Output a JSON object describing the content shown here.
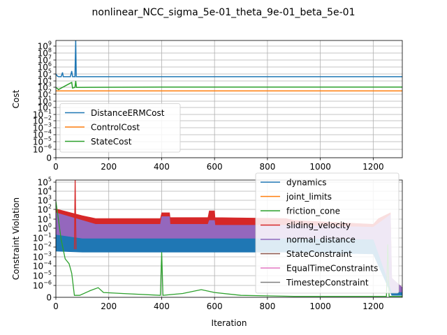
{
  "figure": {
    "suptitle": "nonlinear_NCC_sigma_5e-01_theta_9e-01_beta_5e-01"
  },
  "chart_data": [
    {
      "type": "line",
      "ylabel": "Cost",
      "xlabel": "",
      "yscale": "log",
      "xlim": [
        0,
        1310
      ],
      "ylim_log10": [
        -7,
        9.5
      ],
      "grid": true,
      "legend_position": "lower-left",
      "x_ticks": [
        0,
        200,
        400,
        600,
        800,
        1000,
        1200
      ],
      "y_ticks": [
        {
          "label": "0",
          "exp": null
        },
        {
          "label": "10",
          "exp": "−6"
        },
        {
          "label": "10",
          "exp": "−5"
        },
        {
          "label": "10",
          "exp": "−4"
        },
        {
          "label": "10",
          "exp": "−3"
        },
        {
          "label": "10",
          "exp": "−2"
        },
        {
          "label": "10",
          "exp": "−1"
        },
        {
          "label": "10",
          "exp": "0"
        },
        {
          "label": "10",
          "exp": "1"
        },
        {
          "label": "10",
          "exp": "2"
        },
        {
          "label": "10",
          "exp": "3"
        },
        {
          "label": "10",
          "exp": "4"
        },
        {
          "label": "10",
          "exp": "5"
        },
        {
          "label": "10",
          "exp": "6"
        },
        {
          "label": "10",
          "exp": "7"
        },
        {
          "label": "10",
          "exp": "8"
        },
        {
          "label": "10",
          "exp": "9"
        }
      ],
      "series": [
        {
          "name": "DistanceERMCost",
          "color": "#1f77b4",
          "points_log10": [
            [
              0,
              4.8
            ],
            [
              5,
              4.5
            ],
            [
              10,
              4.4
            ],
            [
              20,
              4.4
            ],
            [
              25,
              5.0
            ],
            [
              28,
              4.4
            ],
            [
              55,
              4.4
            ],
            [
              60,
              5.2
            ],
            [
              63,
              4.4
            ],
            [
              72,
              4.4
            ],
            [
              75,
              9.5
            ],
            [
              77,
              4.4
            ],
            [
              400,
              4.4
            ],
            [
              1310,
              4.4
            ]
          ]
        },
        {
          "name": "ControlCost",
          "color": "#ff7f0e",
          "points_log10": [
            [
              0,
              2.4
            ],
            [
              1310,
              2.4
            ]
          ]
        },
        {
          "name": "StateCost",
          "color": "#2ca02c",
          "points_log10": [
            [
              0,
              2.9
            ],
            [
              10,
              2.6
            ],
            [
              20,
              2.8
            ],
            [
              60,
              3.6
            ],
            [
              63,
              2.8
            ],
            [
              72,
              2.9
            ],
            [
              75,
              3.8
            ],
            [
              78,
              2.9
            ],
            [
              400,
              2.95
            ],
            [
              900,
              2.95
            ],
            [
              1310,
              2.95
            ]
          ]
        }
      ]
    },
    {
      "type": "line",
      "ylabel": "Constraint Violation",
      "xlabel": "Iteration",
      "yscale": "log",
      "xlim": [
        0,
        1310
      ],
      "ylim_log10": [
        -7,
        5.2
      ],
      "grid": true,
      "legend_position": "upper-right",
      "x_ticks": [
        0,
        200,
        400,
        600,
        800,
        1000,
        1200
      ],
      "y_ticks": [
        {
          "label": "0",
          "exp": null
        },
        {
          "label": "10",
          "exp": "−6"
        },
        {
          "label": "10",
          "exp": "−5"
        },
        {
          "label": "10",
          "exp": "−4"
        },
        {
          "label": "10",
          "exp": "−3"
        },
        {
          "label": "10",
          "exp": "−2"
        },
        {
          "label": "10",
          "exp": "−1"
        },
        {
          "label": "10",
          "exp": "0"
        },
        {
          "label": "10",
          "exp": "1"
        },
        {
          "label": "10",
          "exp": "2"
        },
        {
          "label": "10",
          "exp": "3"
        },
        {
          "label": "10",
          "exp": "4"
        },
        {
          "label": "10",
          "exp": "5"
        }
      ],
      "series": [
        {
          "name": "dynamics",
          "color": "#1f77b4"
        },
        {
          "name": "joint_limits",
          "color": "#ff7f0e"
        },
        {
          "name": "friction_cone",
          "color": "#2ca02c"
        },
        {
          "name": "sliding_velocity",
          "color": "#d62728"
        },
        {
          "name": "normal_distance",
          "color": "#9467bd"
        },
        {
          "name": "StateConstraint",
          "color": "#8c564b"
        },
        {
          "name": "EqualTimeConstraints",
          "color": "#e377c2"
        },
        {
          "name": "TimestepConstraint",
          "color": "#7f7f7f"
        }
      ],
      "bands_log10": [
        {
          "series": "sliding_velocity",
          "color": "#d62728",
          "upper": [
            [
              0,
              2.2
            ],
            [
              100,
              1.5
            ],
            [
              150,
              1.2
            ],
            [
              395,
              1.2
            ],
            [
              400,
              1.8
            ],
            [
              430,
              1.8
            ],
            [
              432,
              1.3
            ],
            [
              575,
              1.3
            ],
            [
              580,
              2.0
            ],
            [
              600,
              2.0
            ],
            [
              602,
              1.3
            ],
            [
              870,
              1.2
            ],
            [
              900,
              1.0
            ],
            [
              1200,
              0.6
            ],
            [
              1220,
              1.2
            ],
            [
              1265,
              1.8
            ],
            [
              1270,
              -5
            ],
            [
              1310,
              -6
            ]
          ],
          "lower": [
            [
              0,
              0.5
            ],
            [
              100,
              0.3
            ],
            [
              400,
              0.3
            ],
            [
              900,
              0.3
            ],
            [
              1200,
              0.0
            ],
            [
              1270,
              -6.5
            ],
            [
              1310,
              -6.5
            ]
          ]
        },
        {
          "series": "normal_distance",
          "color": "#9467bd",
          "upper": [
            [
              0,
              1.8
            ],
            [
              100,
              1.0
            ],
            [
              150,
              0.6
            ],
            [
              395,
              0.6
            ],
            [
              400,
              1.4
            ],
            [
              430,
              1.4
            ],
            [
              432,
              0.6
            ],
            [
              575,
              0.6
            ],
            [
              580,
              1.0
            ],
            [
              600,
              1.0
            ],
            [
              602,
              0.5
            ],
            [
              900,
              0.5
            ],
            [
              1200,
              0.3
            ],
            [
              1265,
              1.6
            ],
            [
              1270,
              -5
            ],
            [
              1310,
              -6
            ]
          ],
          "lower": [
            [
              0,
              -1.0
            ],
            [
              100,
              -1.2
            ],
            [
              400,
              -1.2
            ],
            [
              900,
              -1.2
            ],
            [
              1200,
              -1.5
            ],
            [
              1270,
              -6.5
            ],
            [
              1310,
              -6.5
            ]
          ]
        },
        {
          "series": "dynamics",
          "color": "#1f77b4",
          "upper": [
            [
              0,
              -0.5
            ],
            [
              100,
              -0.9
            ],
            [
              400,
              -0.9
            ],
            [
              900,
              -0.9
            ],
            [
              1200,
              -1.0
            ],
            [
              1270,
              -6.5
            ],
            [
              1310,
              -6.5
            ]
          ],
          "lower": [
            [
              0,
              -2.2
            ],
            [
              100,
              -2.3
            ],
            [
              400,
              -2.3
            ],
            [
              900,
              -2.3
            ],
            [
              1200,
              -2.5
            ],
            [
              1270,
              -6.8
            ],
            [
              1310,
              -6.8
            ]
          ]
        }
      ],
      "lines_log10": [
        {
          "series": "friction_cone",
          "color": "#2ca02c",
          "points": [
            [
              0,
              3.0
            ],
            [
              20,
              -1.0
            ],
            [
              35,
              -3.0
            ],
            [
              50,
              -3.5
            ],
            [
              60,
              -4.5
            ],
            [
              70,
              -6.8
            ],
            [
              90,
              -6.8
            ],
            [
              130,
              -6.3
            ],
            [
              160,
              -6.0
            ],
            [
              180,
              -6.5
            ],
            [
              250,
              -6.6
            ],
            [
              395,
              -6.8
            ],
            [
              400,
              -2.3
            ],
            [
              405,
              -6.8
            ],
            [
              480,
              -6.6
            ],
            [
              550,
              -6.2
            ],
            [
              600,
              -6.5
            ],
            [
              700,
              -6.8
            ],
            [
              900,
              -6.9
            ],
            [
              1200,
              -6.9
            ],
            [
              1250,
              -6.9
            ],
            [
              1255,
              -1.5
            ],
            [
              1260,
              -6.9
            ],
            [
              1310,
              -6.9
            ]
          ]
        },
        {
          "series": "sliding_velocity",
          "color": "#d62728",
          "points": [
            [
              70,
              -2.0
            ],
            [
              73,
              5.2
            ],
            [
              76,
              -2.0
            ]
          ]
        }
      ]
    }
  ]
}
